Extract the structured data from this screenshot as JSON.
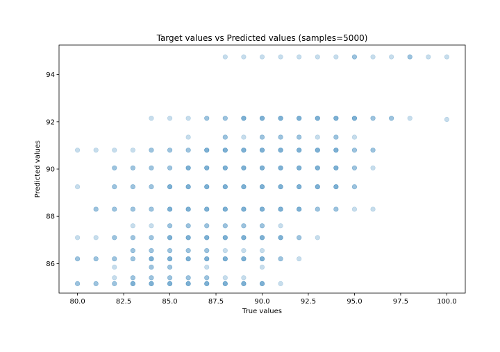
{
  "chart_data": {
    "type": "scatter",
    "title": "Target values vs Predicted values (samples=5000)",
    "xlabel": "True values",
    "ylabel": "Predicted values",
    "xlim": [
      79.0,
      101.0
    ],
    "ylim": [
      84.75,
      95.25
    ],
    "xticks": [
      80.0,
      82.5,
      85.0,
      87.5,
      90.0,
      92.5,
      95.0,
      97.5,
      100.0
    ],
    "xtick_labels": [
      "80.0",
      "82.5",
      "85.0",
      "87.5",
      "90.0",
      "92.5",
      "95.0",
      "97.5",
      "100.0"
    ],
    "yticks": [
      86,
      88,
      90,
      92,
      94
    ],
    "ytick_labels": [
      "86",
      "88",
      "90",
      "92",
      "94"
    ],
    "grid": false,
    "marker_color": "#1f77b4",
    "marker_alpha": 0.25,
    "points": [
      [
        88,
        94.75
      ],
      [
        89,
        94.75
      ],
      [
        90,
        94.75
      ],
      [
        91,
        94.75
      ],
      [
        92,
        94.75
      ],
      [
        93,
        94.75
      ],
      [
        94,
        94.75
      ],
      [
        95,
        94.75
      ],
      [
        95,
        94.75
      ],
      [
        96,
        94.75
      ],
      [
        97,
        94.75
      ],
      [
        98,
        94.75
      ],
      [
        98,
        94.75
      ],
      [
        99,
        94.75
      ],
      [
        100,
        94.75
      ],
      [
        84,
        92.15
      ],
      [
        85,
        92.15
      ],
      [
        86,
        92.15
      ],
      [
        87,
        92.15
      ],
      [
        87,
        92.15
      ],
      [
        88,
        92.15
      ],
      [
        88,
        92.15
      ],
      [
        89,
        92.15
      ],
      [
        89,
        92.15
      ],
      [
        89,
        92.15
      ],
      [
        90,
        92.15
      ],
      [
        90,
        92.15
      ],
      [
        90,
        92.15
      ],
      [
        91,
        92.15
      ],
      [
        91,
        92.15
      ],
      [
        91,
        92.15
      ],
      [
        92,
        92.15
      ],
      [
        92,
        92.15
      ],
      [
        92,
        92.15
      ],
      [
        93,
        92.15
      ],
      [
        93,
        92.15
      ],
      [
        93,
        92.15
      ],
      [
        94,
        92.15
      ],
      [
        94,
        92.15
      ],
      [
        94,
        92.15
      ],
      [
        95,
        92.15
      ],
      [
        95,
        92.15
      ],
      [
        95,
        92.15
      ],
      [
        96,
        92.15
      ],
      [
        96,
        92.15
      ],
      [
        97,
        92.15
      ],
      [
        97,
        92.15
      ],
      [
        98,
        92.15
      ],
      [
        100,
        92.1
      ],
      [
        86,
        91.35
      ],
      [
        88,
        91.35
      ],
      [
        88,
        91.35
      ],
      [
        89,
        91.35
      ],
      [
        90,
        91.35
      ],
      [
        90,
        91.35
      ],
      [
        91,
        91.35
      ],
      [
        91,
        91.35
      ],
      [
        92,
        91.35
      ],
      [
        92,
        91.35
      ],
      [
        93,
        91.35
      ],
      [
        94,
        91.35
      ],
      [
        94,
        91.35
      ],
      [
        95,
        91.35
      ],
      [
        80,
        90.8
      ],
      [
        81,
        90.8
      ],
      [
        82,
        90.8
      ],
      [
        83,
        90.8
      ],
      [
        84,
        90.8
      ],
      [
        84,
        90.8
      ],
      [
        85,
        90.8
      ],
      [
        85,
        90.8
      ],
      [
        86,
        90.8
      ],
      [
        86,
        90.8
      ],
      [
        87,
        90.8
      ],
      [
        87,
        90.8
      ],
      [
        87,
        90.8
      ],
      [
        88,
        90.8
      ],
      [
        88,
        90.8
      ],
      [
        88,
        90.8
      ],
      [
        89,
        90.8
      ],
      [
        89,
        90.8
      ],
      [
        89,
        90.8
      ],
      [
        90,
        90.8
      ],
      [
        90,
        90.8
      ],
      [
        90,
        90.8
      ],
      [
        91,
        90.8
      ],
      [
        91,
        90.8
      ],
      [
        91,
        90.8
      ],
      [
        92,
        90.8
      ],
      [
        92,
        90.8
      ],
      [
        92,
        90.8
      ],
      [
        93,
        90.8
      ],
      [
        93,
        90.8
      ],
      [
        93,
        90.8
      ],
      [
        94,
        90.8
      ],
      [
        94,
        90.8
      ],
      [
        94,
        90.8
      ],
      [
        95,
        90.8
      ],
      [
        95,
        90.8
      ],
      [
        96,
        90.8
      ],
      [
        96,
        90.8
      ],
      [
        82,
        90.05
      ],
      [
        82,
        90.05
      ],
      [
        83,
        90.05
      ],
      [
        83,
        90.05
      ],
      [
        84,
        90.05
      ],
      [
        84,
        90.05
      ],
      [
        85,
        90.05
      ],
      [
        85,
        90.05
      ],
      [
        86,
        90.05
      ],
      [
        86,
        90.05
      ],
      [
        86,
        90.05
      ],
      [
        87,
        90.05
      ],
      [
        87,
        90.05
      ],
      [
        87,
        90.05
      ],
      [
        88,
        90.05
      ],
      [
        88,
        90.05
      ],
      [
        88,
        90.05
      ],
      [
        89,
        90.05
      ],
      [
        89,
        90.05
      ],
      [
        89,
        90.05
      ],
      [
        90,
        90.05
      ],
      [
        90,
        90.05
      ],
      [
        90,
        90.05
      ],
      [
        91,
        90.05
      ],
      [
        91,
        90.05
      ],
      [
        91,
        90.05
      ],
      [
        92,
        90.05
      ],
      [
        92,
        90.05
      ],
      [
        92,
        90.05
      ],
      [
        93,
        90.05
      ],
      [
        93,
        90.05
      ],
      [
        93,
        90.05
      ],
      [
        94,
        90.05
      ],
      [
        94,
        90.05
      ],
      [
        94,
        90.05
      ],
      [
        95,
        90.05
      ],
      [
        95,
        90.05
      ],
      [
        96,
        90.05
      ],
      [
        80,
        89.25
      ],
      [
        82,
        89.25
      ],
      [
        82,
        89.25
      ],
      [
        83,
        89.25
      ],
      [
        83,
        89.25
      ],
      [
        84,
        89.25
      ],
      [
        84,
        89.25
      ],
      [
        85,
        89.25
      ],
      [
        85,
        89.25
      ],
      [
        85,
        89.25
      ],
      [
        86,
        89.25
      ],
      [
        86,
        89.25
      ],
      [
        86,
        89.25
      ],
      [
        87,
        89.25
      ],
      [
        87,
        89.25
      ],
      [
        87,
        89.25
      ],
      [
        88,
        89.25
      ],
      [
        88,
        89.25
      ],
      [
        88,
        89.25
      ],
      [
        89,
        89.25
      ],
      [
        89,
        89.25
      ],
      [
        89,
        89.25
      ],
      [
        90,
        89.25
      ],
      [
        90,
        89.25
      ],
      [
        90,
        89.25
      ],
      [
        91,
        89.25
      ],
      [
        91,
        89.25
      ],
      [
        91,
        89.25
      ],
      [
        92,
        89.25
      ],
      [
        92,
        89.25
      ],
      [
        92,
        89.25
      ],
      [
        93,
        89.25
      ],
      [
        93,
        89.25
      ],
      [
        93,
        89.25
      ],
      [
        94,
        89.25
      ],
      [
        94,
        89.25
      ],
      [
        94,
        89.25
      ],
      [
        95,
        89.25
      ],
      [
        95,
        89.25
      ],
      [
        81,
        88.3
      ],
      [
        81,
        88.3
      ],
      [
        82,
        88.3
      ],
      [
        82,
        88.3
      ],
      [
        83,
        88.3
      ],
      [
        83,
        88.3
      ],
      [
        84,
        88.3
      ],
      [
        84,
        88.3
      ],
      [
        85,
        88.3
      ],
      [
        85,
        88.3
      ],
      [
        85,
        88.3
      ],
      [
        86,
        88.3
      ],
      [
        86,
        88.3
      ],
      [
        86,
        88.3
      ],
      [
        87,
        88.3
      ],
      [
        87,
        88.3
      ],
      [
        87,
        88.3
      ],
      [
        88,
        88.3
      ],
      [
        88,
        88.3
      ],
      [
        88,
        88.3
      ],
      [
        89,
        88.3
      ],
      [
        89,
        88.3
      ],
      [
        89,
        88.3
      ],
      [
        90,
        88.3
      ],
      [
        90,
        88.3
      ],
      [
        90,
        88.3
      ],
      [
        91,
        88.3
      ],
      [
        91,
        88.3
      ],
      [
        91,
        88.3
      ],
      [
        92,
        88.3
      ],
      [
        92,
        88.3
      ],
      [
        92,
        88.3
      ],
      [
        93,
        88.3
      ],
      [
        93,
        88.3
      ],
      [
        94,
        88.3
      ],
      [
        94,
        88.3
      ],
      [
        95,
        88.3
      ],
      [
        96,
        88.3
      ],
      [
        83,
        87.6
      ],
      [
        84,
        87.6
      ],
      [
        85,
        87.6
      ],
      [
        85,
        87.6
      ],
      [
        86,
        87.6
      ],
      [
        86,
        87.6
      ],
      [
        87,
        87.6
      ],
      [
        87,
        87.6
      ],
      [
        88,
        87.6
      ],
      [
        88,
        87.6
      ],
      [
        89,
        87.6
      ],
      [
        89,
        87.6
      ],
      [
        90,
        87.6
      ],
      [
        90,
        87.6
      ],
      [
        91,
        87.6
      ],
      [
        80,
        87.1
      ],
      [
        81,
        87.1
      ],
      [
        82,
        87.1
      ],
      [
        82,
        87.1
      ],
      [
        83,
        87.1
      ],
      [
        83,
        87.1
      ],
      [
        84,
        87.1
      ],
      [
        84,
        87.1
      ],
      [
        85,
        87.1
      ],
      [
        85,
        87.1
      ],
      [
        85,
        87.1
      ],
      [
        86,
        87.1
      ],
      [
        86,
        87.1
      ],
      [
        86,
        87.1
      ],
      [
        87,
        87.1
      ],
      [
        87,
        87.1
      ],
      [
        87,
        87.1
      ],
      [
        88,
        87.1
      ],
      [
        88,
        87.1
      ],
      [
        88,
        87.1
      ],
      [
        89,
        87.1
      ],
      [
        89,
        87.1
      ],
      [
        89,
        87.1
      ],
      [
        90,
        87.1
      ],
      [
        90,
        87.1
      ],
      [
        90,
        87.1
      ],
      [
        91,
        87.1
      ],
      [
        91,
        87.1
      ],
      [
        91,
        87.1
      ],
      [
        92,
        87.1
      ],
      [
        92,
        87.1
      ],
      [
        93,
        87.1
      ],
      [
        83,
        86.55
      ],
      [
        83,
        86.55
      ],
      [
        84,
        86.55
      ],
      [
        84,
        86.55
      ],
      [
        85,
        86.55
      ],
      [
        85,
        86.55
      ],
      [
        86,
        86.55
      ],
      [
        86,
        86.55
      ],
      [
        87,
        86.55
      ],
      [
        87,
        86.55
      ],
      [
        88,
        86.55
      ],
      [
        89,
        86.55
      ],
      [
        90,
        86.55
      ],
      [
        80,
        86.2
      ],
      [
        80,
        86.2
      ],
      [
        81,
        86.2
      ],
      [
        81,
        86.2
      ],
      [
        82,
        86.2
      ],
      [
        82,
        86.2
      ],
      [
        83,
        86.2
      ],
      [
        83,
        86.2
      ],
      [
        84,
        86.2
      ],
      [
        84,
        86.2
      ],
      [
        84,
        86.2
      ],
      [
        85,
        86.2
      ],
      [
        85,
        86.2
      ],
      [
        85,
        86.2
      ],
      [
        86,
        86.2
      ],
      [
        86,
        86.2
      ],
      [
        86,
        86.2
      ],
      [
        87,
        86.2
      ],
      [
        87,
        86.2
      ],
      [
        87,
        86.2
      ],
      [
        88,
        86.2
      ],
      [
        88,
        86.2
      ],
      [
        88,
        86.2
      ],
      [
        89,
        86.2
      ],
      [
        89,
        86.2
      ],
      [
        89,
        86.2
      ],
      [
        90,
        86.2
      ],
      [
        90,
        86.2
      ],
      [
        90,
        86.2
      ],
      [
        91,
        86.2
      ],
      [
        91,
        86.2
      ],
      [
        92,
        86.2
      ],
      [
        82,
        85.85
      ],
      [
        84,
        85.85
      ],
      [
        84,
        85.85
      ],
      [
        85,
        85.85
      ],
      [
        85,
        85.85
      ],
      [
        87,
        85.85
      ],
      [
        90,
        85.85
      ],
      [
        82,
        85.4
      ],
      [
        83,
        85.4
      ],
      [
        83,
        85.4
      ],
      [
        84,
        85.4
      ],
      [
        84,
        85.4
      ],
      [
        85,
        85.4
      ],
      [
        85,
        85.4
      ],
      [
        86,
        85.4
      ],
      [
        86,
        85.4
      ],
      [
        87,
        85.4
      ],
      [
        87,
        85.4
      ],
      [
        88,
        85.4
      ],
      [
        89,
        85.4
      ],
      [
        80,
        85.15
      ],
      [
        80,
        85.15
      ],
      [
        81,
        85.15
      ],
      [
        81,
        85.15
      ],
      [
        82,
        85.15
      ],
      [
        82,
        85.15
      ],
      [
        83,
        85.15
      ],
      [
        83,
        85.15
      ],
      [
        83,
        85.15
      ],
      [
        84,
        85.15
      ],
      [
        84,
        85.15
      ],
      [
        84,
        85.15
      ],
      [
        85,
        85.15
      ],
      [
        85,
        85.15
      ],
      [
        85,
        85.15
      ],
      [
        86,
        85.15
      ],
      [
        86,
        85.15
      ],
      [
        86,
        85.15
      ],
      [
        87,
        85.15
      ],
      [
        87,
        85.15
      ],
      [
        87,
        85.15
      ],
      [
        88,
        85.15
      ],
      [
        88,
        85.15
      ],
      [
        88,
        85.15
      ],
      [
        89,
        85.15
      ],
      [
        89,
        85.15
      ],
      [
        89,
        85.15
      ],
      [
        90,
        85.15
      ],
      [
        90,
        85.15
      ],
      [
        90,
        85.15
      ],
      [
        91,
        85.15
      ]
    ]
  }
}
